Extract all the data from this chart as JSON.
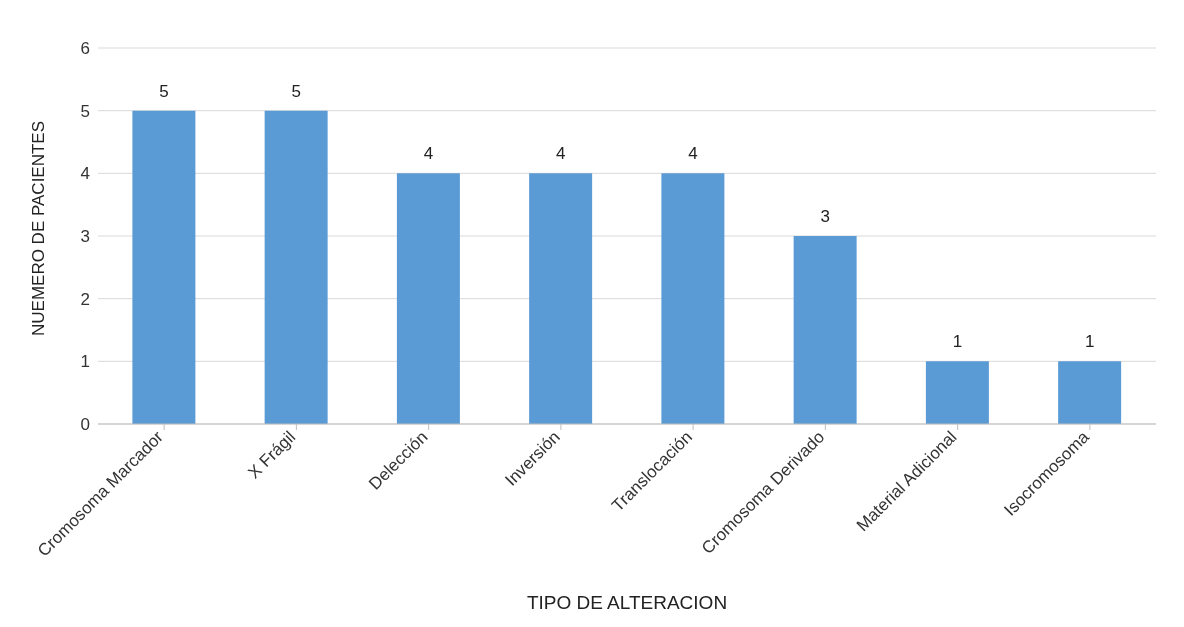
{
  "chart_data": {
    "type": "bar",
    "xlabel": "TIPO DE ALTERACION",
    "ylabel": "NUEMERO DE PACIENTES",
    "categories": [
      "Cromosoma Marcador",
      "X Frágil",
      "Delección",
      "Inversión",
      "Translocación",
      "Cromosoma Derivado",
      "Material Adicional",
      "Isocromosoma"
    ],
    "values": [
      5,
      5,
      4,
      4,
      4,
      3,
      1,
      1
    ],
    "color": "#5b9bd5",
    "ylim": [
      0,
      6
    ],
    "yticks": [
      0,
      1,
      2,
      3,
      4,
      5,
      6
    ],
    "grid": "y",
    "data_labels": true
  }
}
